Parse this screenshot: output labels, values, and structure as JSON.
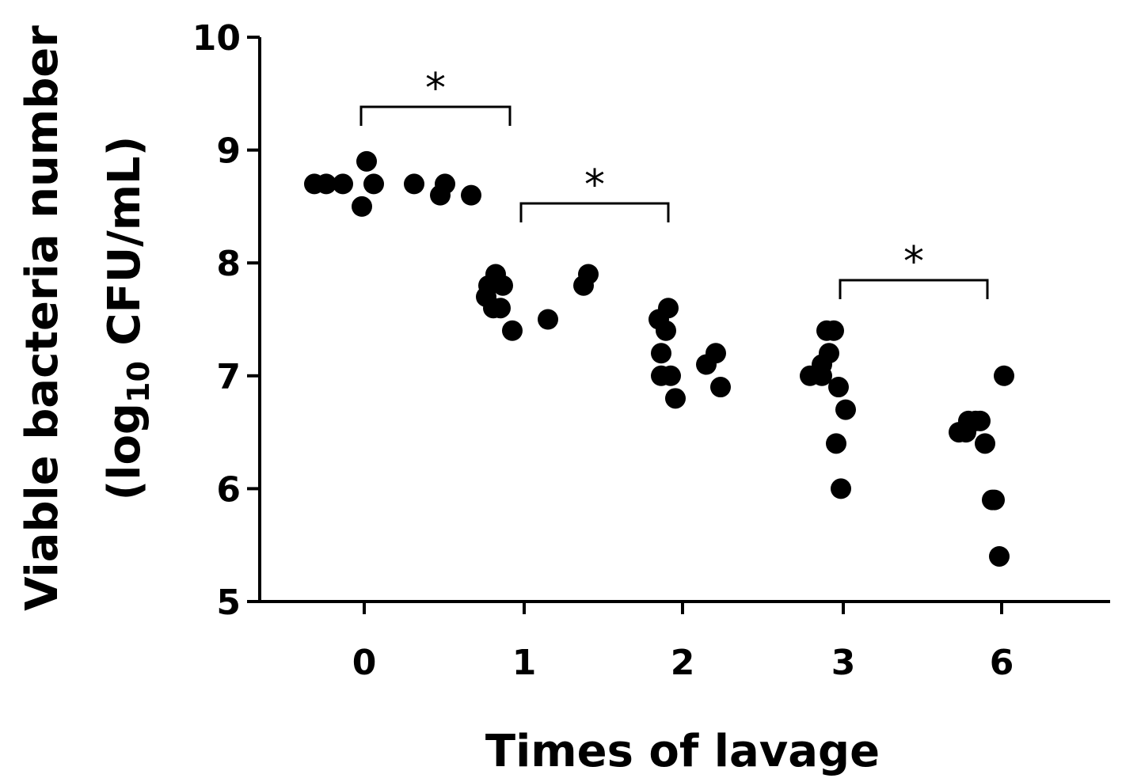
{
  "chart_data": {
    "type": "scatter",
    "title": "",
    "xlabel": "Times of lavage",
    "ylabel_line1": "Viable bacteria number",
    "ylabel_line2_open": "(log",
    "ylabel_line2_sub": "10",
    "ylabel_line2_close": " CFU/mL)",
    "categories": [
      "0",
      "1",
      "2",
      "3",
      "6"
    ],
    "ylim": [
      5,
      10
    ],
    "yticks": [
      5,
      6,
      7,
      8,
      9,
      10
    ],
    "grid": false,
    "legend": "none",
    "point_color": "#000000",
    "groups": [
      {
        "category": "0",
        "values": [
          8.7,
          8.7,
          8.7,
          8.7,
          8.5,
          8.9,
          8.7,
          8.6,
          8.7,
          8.6
        ]
      },
      {
        "category": "1",
        "values": [
          7.8,
          7.7,
          7.4,
          7.9,
          7.6,
          7.5,
          7.8,
          7.6,
          7.8,
          7.9
        ]
      },
      {
        "category": "2",
        "values": [
          7.2,
          7.4,
          7.0,
          6.8,
          7.5,
          7.1,
          7.6,
          7.2,
          6.9,
          7.0
        ]
      },
      {
        "category": "3",
        "values": [
          7.1,
          7.4,
          7.0,
          6.4,
          6.0,
          6.7,
          7.2,
          7.4,
          6.9,
          7.0
        ]
      },
      {
        "category": "6",
        "values": [
          6.6,
          6.4,
          6.6,
          5.9,
          5.4,
          7.0,
          6.5,
          5.9,
          6.6,
          6.5
        ]
      }
    ],
    "significance": [
      {
        "from": "0",
        "to": "1",
        "label": "*"
      },
      {
        "from": "1",
        "to": "2",
        "label": "*"
      },
      {
        "from": "3",
        "to": "6",
        "label": "*"
      }
    ]
  }
}
